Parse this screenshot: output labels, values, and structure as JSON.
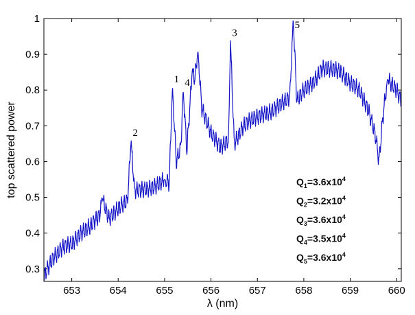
{
  "chart_data": {
    "type": "line",
    "title": "",
    "xlabel": "λ (nm)",
    "ylabel": "top scattered power",
    "xlim": [
      652.4,
      660.1
    ],
    "ylim": [
      0.265,
      1.0
    ],
    "x_ticks": [
      653,
      654,
      655,
      656,
      657,
      658,
      659,
      660
    ],
    "y_ticks": [
      0.3,
      0.4,
      0.5,
      0.6,
      0.7,
      0.8,
      0.9,
      1
    ],
    "x_tick_labels": [
      "653",
      "654",
      "655",
      "656",
      "657",
      "658",
      "659",
      "660"
    ],
    "y_tick_labels": [
      "0.3",
      "0.4",
      "0.5",
      "0.6",
      "0.7",
      "0.8",
      "0.9",
      "1"
    ],
    "grid": false,
    "series": [
      {
        "color": "#1515c8",
        "x": [
          652.4,
          652.6,
          652.8,
          653.0,
          653.2,
          653.4,
          653.6,
          653.65,
          653.8,
          654.0,
          654.2,
          654.28,
          654.35,
          654.5,
          654.8,
          655.0,
          655.1,
          655.17,
          655.25,
          655.35,
          655.4,
          655.48,
          655.6,
          655.65,
          655.72,
          655.8,
          656.0,
          656.2,
          656.38,
          656.42,
          656.5,
          656.7,
          656.9,
          657.1,
          657.3,
          657.5,
          657.7,
          657.77,
          657.85,
          658.0,
          658.2,
          658.4,
          658.6,
          658.8,
          659.0,
          659.2,
          659.4,
          659.55,
          659.62,
          659.7,
          659.8,
          660.0,
          660.1
        ],
        "values": [
          0.28,
          0.33,
          0.36,
          0.37,
          0.4,
          0.42,
          0.45,
          0.5,
          0.44,
          0.47,
          0.49,
          0.66,
          0.52,
          0.52,
          0.53,
          0.55,
          0.54,
          0.81,
          0.6,
          0.64,
          0.8,
          0.63,
          0.86,
          0.83,
          0.91,
          0.75,
          0.68,
          0.64,
          0.66,
          0.94,
          0.65,
          0.7,
          0.72,
          0.73,
          0.74,
          0.76,
          0.78,
          1.0,
          0.77,
          0.8,
          0.82,
          0.86,
          0.86,
          0.85,
          0.82,
          0.8,
          0.74,
          0.67,
          0.6,
          0.72,
          0.83,
          0.8,
          0.77
        ]
      }
    ],
    "peak_annotations": [
      {
        "label": "1",
        "x": 655.17,
        "y": 0.81
      },
      {
        "label": "2",
        "x": 654.28,
        "y": 0.66
      },
      {
        "label": "3",
        "x": 656.42,
        "y": 0.94
      },
      {
        "label": "4",
        "x": 655.4,
        "y": 0.8
      },
      {
        "label": "5",
        "x": 657.77,
        "y": 1.0
      }
    ],
    "q_annotations": [
      {
        "sub": "1",
        "mant": "3.6x10",
        "exp": "4"
      },
      {
        "sub": "2",
        "mant": "3.2x10",
        "exp": "4"
      },
      {
        "sub": "3",
        "mant": "3.6x10",
        "exp": "4"
      },
      {
        "sub": "4",
        "mant": "3.5x10",
        "exp": "4"
      },
      {
        "sub": "5",
        "mant": "3.6x10",
        "exp": "4"
      }
    ]
  }
}
